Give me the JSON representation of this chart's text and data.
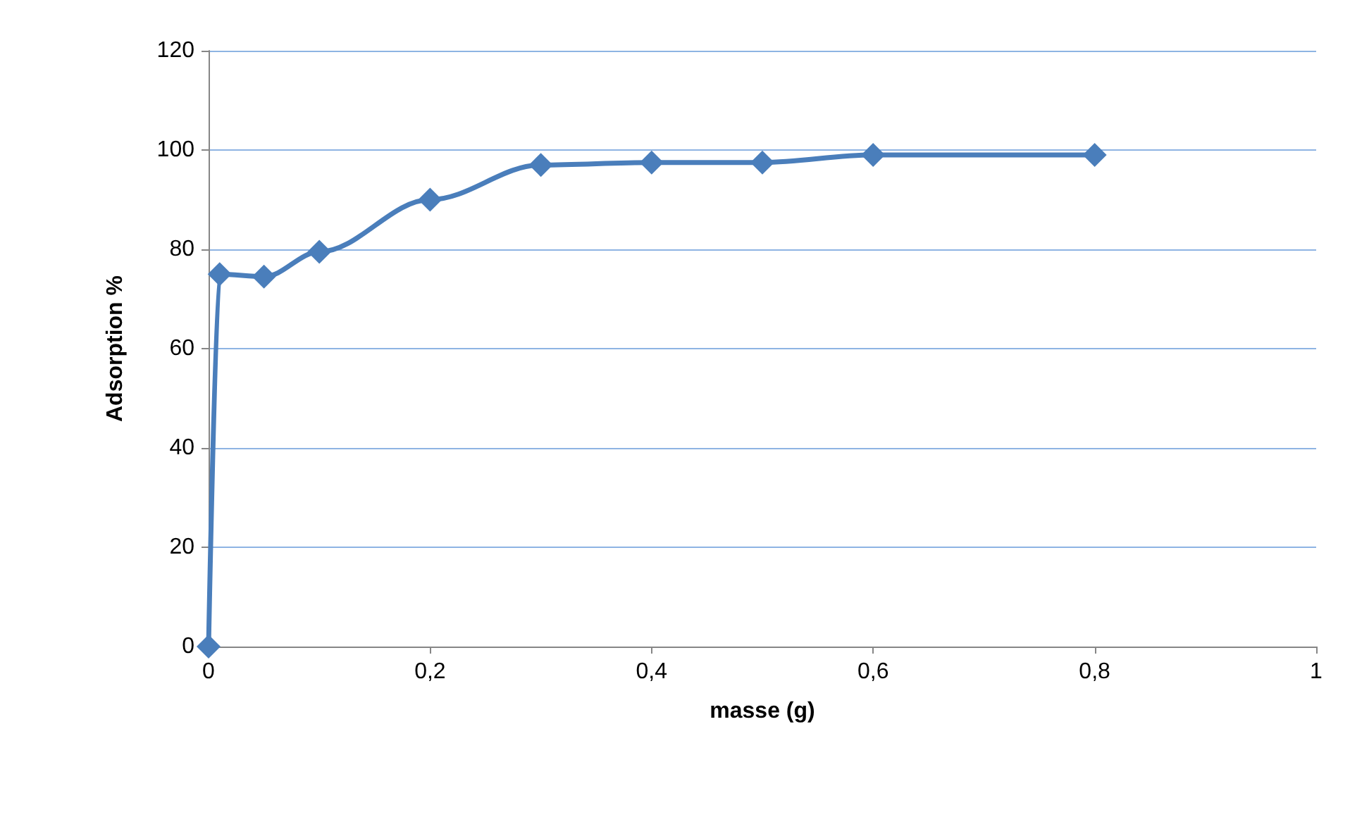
{
  "chart_data": {
    "type": "line",
    "xlabel": "masse (g)",
    "ylabel": "Adsorption %",
    "x": [
      0,
      0.01,
      0.05,
      0.1,
      0.2,
      0.3,
      0.4,
      0.5,
      0.6,
      0.8
    ],
    "series": [
      {
        "color": "#4a7ebb",
        "values": [
          0,
          75,
          74.5,
          79.5,
          90,
          97,
          97.5,
          97.5,
          99,
          99
        ]
      }
    ],
    "xlim": [
      0,
      1
    ],
    "xticks": [
      0,
      {
        "value": 0.2,
        "label": "0,2"
      },
      {
        "value": 0.4,
        "label": "0,4"
      },
      {
        "value": 0.6,
        "label": "0,6"
      },
      {
        "value": 0.8,
        "label": "0,8"
      },
      1
    ],
    "ylim": [
      0,
      120
    ],
    "yticks": [
      0,
      20,
      40,
      60,
      80,
      100,
      120
    ],
    "grid": "y",
    "marker": "diamond",
    "line_style": "solid"
  }
}
